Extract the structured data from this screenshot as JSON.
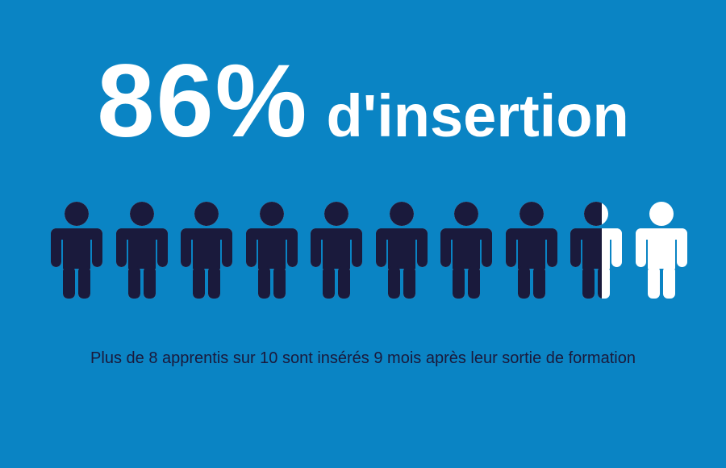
{
  "headline": {
    "percent_text": "86%",
    "label_text": "d'insertion"
  },
  "pictogram": {
    "total_people": 10,
    "filled_fraction": 0.86,
    "filled_color": "#1a1a3c",
    "empty_color": "#ffffff",
    "icon": "person-icon"
  },
  "caption": "Plus de 8 apprentis sur 10 sont insérés 9 mois après leur sortie de formation",
  "colors": {
    "background": "#0a84c4",
    "headline": "#ffffff",
    "caption": "#1a1a3c"
  }
}
